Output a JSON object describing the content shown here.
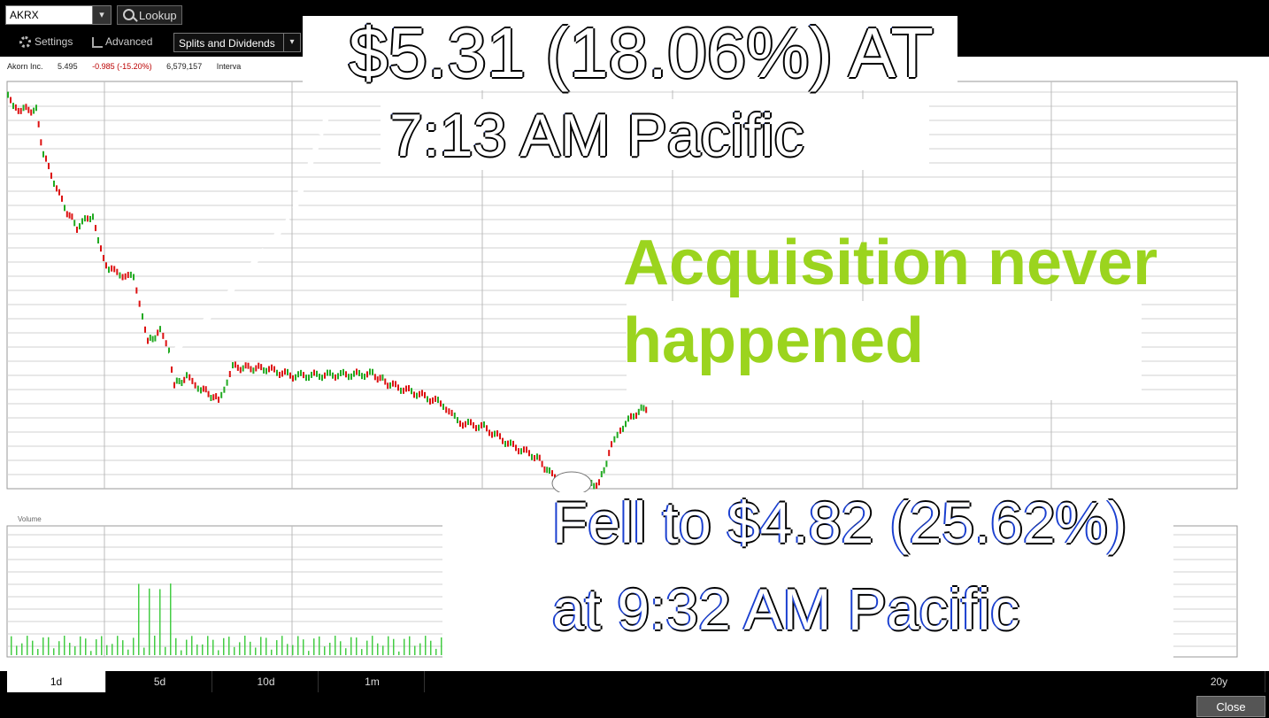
{
  "toolbar": {
    "symbol": "AKRX",
    "lookup_label": "Lookup",
    "settings_label": "Settings",
    "advanced_label": "Advanced",
    "splits_label": "Splits and Dividends"
  },
  "quote": {
    "name": "Akorn Inc.",
    "last": "5.495",
    "change": "-0.985 (-15.20%)",
    "volume": "6,579,157",
    "interval_label": "Interva"
  },
  "annotations": {
    "headline_line1": "$5.31 (18.06%) AT",
    "headline_line2": "7:13 AM Pacific",
    "note_line1": "Acquisition never",
    "note_line2": "happened",
    "fell_line1": "Fell to $4.82 (25.62%)",
    "fell_line2": "at 9:32 AM Pacific"
  },
  "chart": {
    "volume_label": "Volume",
    "up_color": "#22aa22",
    "down_color": "#dd1111",
    "volume_color": "#44cc44"
  },
  "ranges": {
    "items": [
      "1d",
      "5d",
      "10d",
      "1m",
      "20y"
    ],
    "active": "1d"
  },
  "close_label": "Close"
}
